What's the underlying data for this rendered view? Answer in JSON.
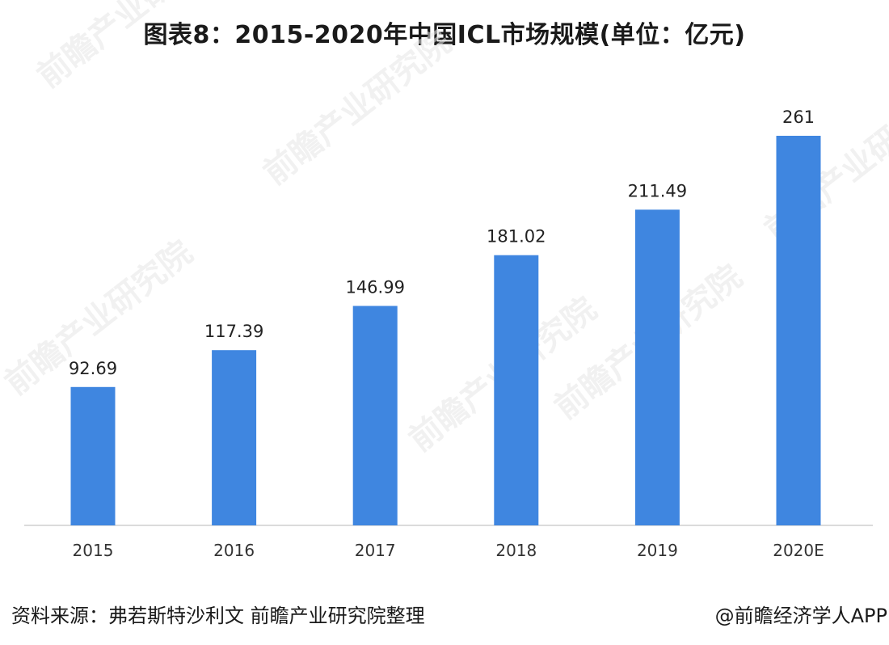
{
  "title": "图表8：2015-2020年中国ICL市场规模(单位：亿元)",
  "chart_data": {
    "type": "bar",
    "categories": [
      "2015",
      "2016",
      "2017",
      "2018",
      "2019",
      "2020E"
    ],
    "values": [
      92.69,
      117.39,
      146.99,
      181.02,
      211.49,
      261
    ],
    "value_labels": [
      "92.69",
      "117.39",
      "146.99",
      "181.02",
      "211.49",
      "261"
    ],
    "bar_color": "#3f86e0",
    "ylim": [
      0,
      270
    ],
    "grid": false,
    "legend": "none"
  },
  "footer": {
    "source": "资料来源：弗若斯特沙利文 前瞻产业研究院整理",
    "credit": "@前瞻经济学人APP"
  },
  "watermark": {
    "text": "前瞻产业研究院"
  }
}
